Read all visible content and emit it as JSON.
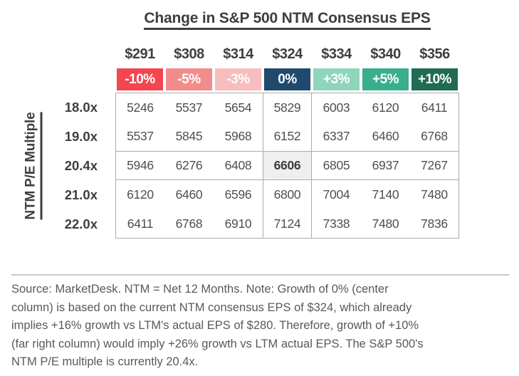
{
  "chart_data": {
    "type": "heatmap",
    "title": "Change in S&P 500 NTM Consensus EPS",
    "ylabel": "NTM P/E Multiple",
    "column_headers_eps": [
      "$291",
      "$308",
      "$314",
      "$324",
      "$334",
      "$340",
      "$356"
    ],
    "column_headers_growth": [
      "-10%",
      "-5%",
      "-3%",
      "0%",
      "+3%",
      "+5%",
      "+10%"
    ],
    "growth_colors": [
      "#F5464F",
      "#F28C8C",
      "#F8BDBD",
      "#20496E",
      "#8FD5BC",
      "#38AE8D",
      "#1F6B54"
    ],
    "rows": [
      {
        "label": "18.0x",
        "values": [
          5246,
          5537,
          5654,
          5829,
          6003,
          6120,
          6411
        ]
      },
      {
        "label": "19.0x",
        "values": [
          5537,
          5845,
          5968,
          6152,
          6337,
          6460,
          6768
        ]
      },
      {
        "label": "20.4x",
        "values": [
          5946,
          6276,
          6408,
          6606,
          6805,
          6937,
          7267
        ]
      },
      {
        "label": "21.0x",
        "values": [
          6120,
          6460,
          6596,
          6800,
          7004,
          7140,
          7480
        ]
      },
      {
        "label": "22.0x",
        "values": [
          6411,
          6768,
          6910,
          7124,
          7338,
          7480,
          7836
        ]
      }
    ],
    "highlight": {
      "row_label": "20.4x",
      "column_growth": "0%",
      "value": 6606,
      "background": "#EFEFEF"
    },
    "legend_position": "none",
    "grid": "partial"
  },
  "footnote_lines": [
    "Source: MarketDesk. NTM = Net 12 Months. Note: Growth of 0% (center",
    "column) is based on the current NTM consensus EPS of $324, which already",
    "implies +16% growth vs LTM's actual EPS of $280. Therefore, growth of +10%",
    "(far right column) would imply +26% growth vs LTM actual EPS. The S&P 500's",
    "NTM P/E multiple is currently 20.4x."
  ],
  "colors": {
    "border": "#ABABAB",
    "title_text": "#3E3E3E",
    "value_text": "#4F4F4F",
    "footnote_text": "#595959",
    "divider": "#C8C8C8"
  }
}
